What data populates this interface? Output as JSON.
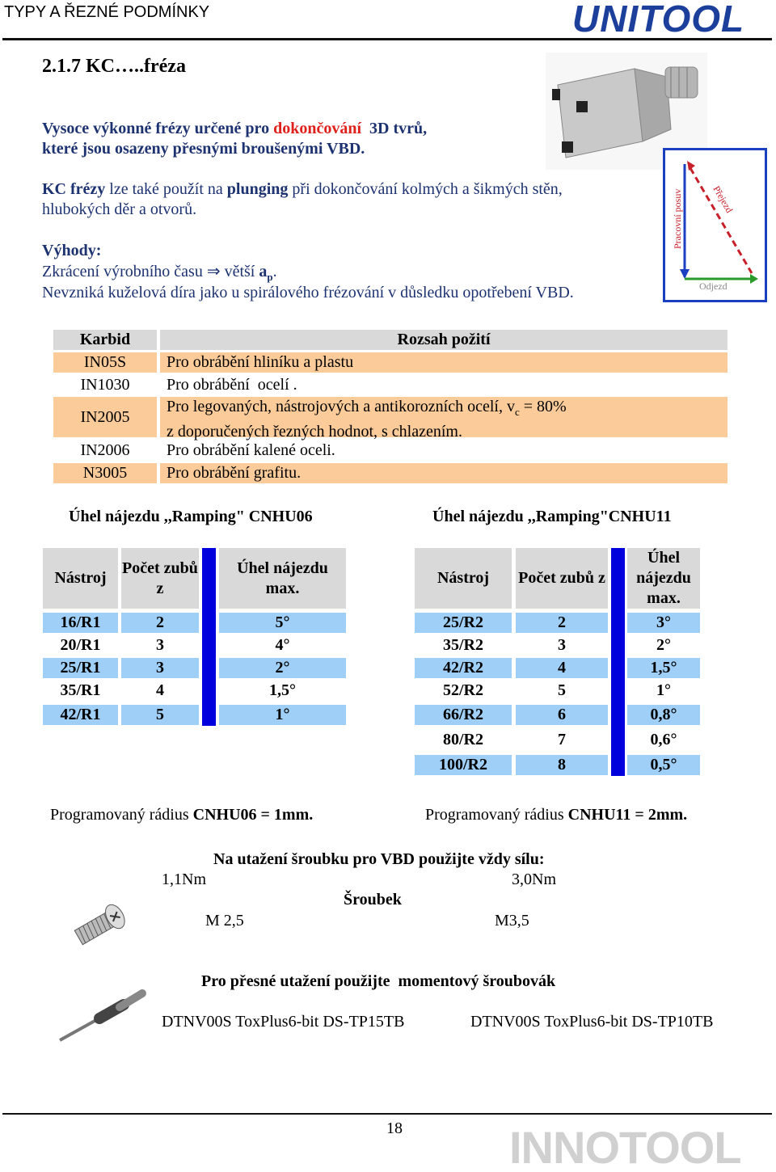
{
  "header": {
    "title": "TYPY A ŘEZNÉ PODMÍNKY",
    "logo": "UNITOOL"
  },
  "section": "2.1.7 KC…..fréza",
  "intro": {
    "line1": [
      "Vysoce výkonné frézy určené pro ",
      "dokončování",
      "  3D tvrů,"
    ],
    "line2": "které jsou osazeny přesnými broušenými VBD."
  },
  "plunging": {
    "line1": [
      "KC frézy",
      " lze také použít na ",
      "plunging",
      " při dokončování kolmých a šikmých stěn,"
    ],
    "line2": "hlubokých děr a otvorů."
  },
  "advantages": {
    "title": "Výhody:",
    "line1": [
      "Zkrácení výrobního času ",
      "⇒",
      " větší ",
      "a",
      "p",
      "."
    ],
    "line2": "Nevzniká kuželová díra jako u spirálového frézování v důsledku opotřebení VBD."
  },
  "diagram": {
    "feed": "Pracovní posuv",
    "pass": "Přejezd",
    "exit": "Odjezd"
  },
  "carbide_table": {
    "headers": [
      "Karbid",
      "Rozsah požití"
    ],
    "rows": [
      {
        "grade": "IN05S",
        "text": "Pro obrábění hliníku a plastu"
      },
      {
        "grade": "IN1030",
        "text": "Pro obrábění  ocelí ."
      },
      {
        "grade": "IN2005",
        "text": "Pro legovaných, nástrojových a antikorozních ocelí, v",
        "sub": "c",
        "text2": " = 80%",
        "text3": "z doporučených řezných hodnot, s chlazením."
      },
      {
        "grade": "IN2006",
        "text": "Pro obrábění kalené oceli."
      },
      {
        "grade": "N3005",
        "text": "Pro obrábění grafitu."
      }
    ]
  },
  "ramping": [
    {
      "title": "Úhel nájezdu ,,Ramping\" CNHU06",
      "headers": [
        "Nástroj",
        "Počet zubů z",
        "Úhel nájezdu max."
      ],
      "rows": [
        [
          "16/R1",
          "2",
          "5°"
        ],
        [
          "20/R1",
          "3",
          "4°"
        ],
        [
          "25/R1",
          "3",
          "2°"
        ],
        [
          "35/R1",
          "4",
          "1,5°"
        ],
        [
          "42/R1",
          "5",
          "1°"
        ]
      ],
      "note": [
        "Programovaný rádius ",
        "CNHU06 = 1mm."
      ]
    },
    {
      "title": "Úhel nájezdu ,,Ramping\"CNHU11",
      "headers": [
        "Nástroj",
        "Počet zubů z",
        "Úhel nájezdu max."
      ],
      "rows": [
        [
          "25/R2",
          "2",
          "3°"
        ],
        [
          "35/R2",
          "3",
          "2°"
        ],
        [
          "42/R2",
          "4",
          "1,5°"
        ],
        [
          "52/R2",
          "5",
          "1°"
        ],
        [
          "66/R2",
          "6",
          "0,8°"
        ],
        [
          "80/R2",
          "7",
          "0,6°"
        ],
        [
          "100/R2",
          "8",
          "0,5°"
        ]
      ],
      "note": [
        "Programovaný rádius ",
        "CNHU11 = 2mm."
      ]
    }
  ],
  "screws": {
    "title": "Na utažení šroubku pro VBD použijte vždy sílu:",
    "torque": [
      "1,1Nm",
      "3,0Nm"
    ],
    "label": "Šroubek",
    "sizes": [
      "M 2,5",
      "M3,5"
    ]
  },
  "driver": {
    "title": "Pro přesné utažení použijte  momentový šroubovák",
    "items": [
      "DTNV00S ToxPlus6-bit DS-TP15TB",
      "DTNV00S ToxPlus6-bit DS-TP10TB"
    ]
  },
  "footer": {
    "page": "18",
    "logo": "INNOTOOL"
  }
}
